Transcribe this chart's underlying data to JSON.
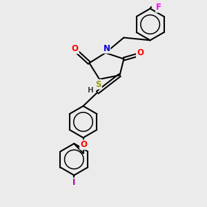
{
  "bg_color": "#ebebeb",
  "line_color": "#000000",
  "bond_width": 1.5,
  "colors": {
    "O": "#ff0000",
    "N": "#0000cc",
    "S": "#999900",
    "F": "#ff00ff",
    "I": "#aa00aa",
    "H": "#444444"
  },
  "font_size": 8.5
}
